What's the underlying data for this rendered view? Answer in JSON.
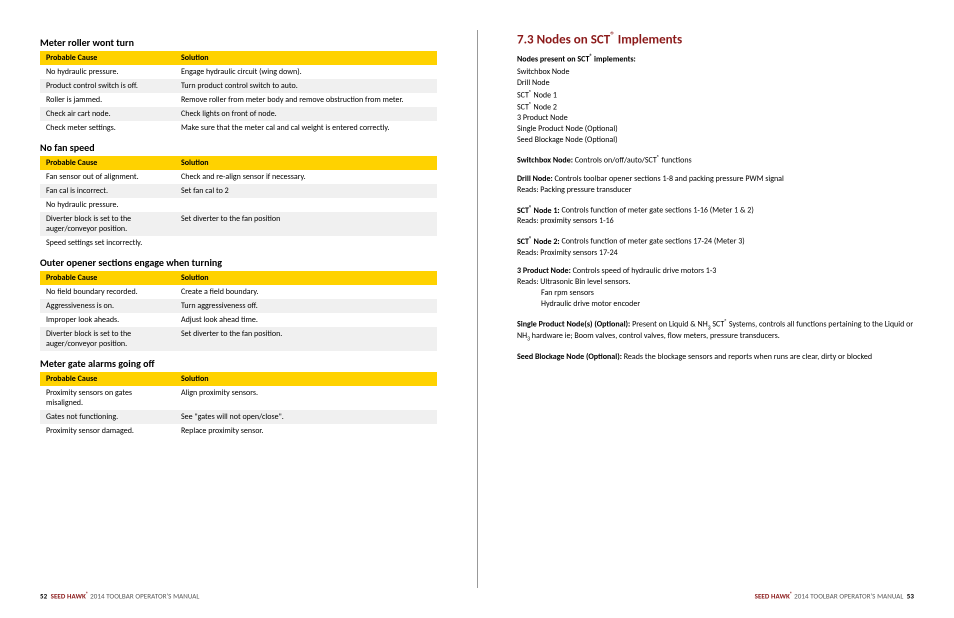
{
  "left": {
    "sections": [
      {
        "title": "Meter roller wont turn",
        "col1": "Probable Cause",
        "col2": "Solution",
        "rows": [
          {
            "c": "No hydraulic pressure.",
            "s": "Engage hydraulic circuit (wing down)."
          },
          {
            "c": "Product control switch is off.",
            "s": "Turn product control switch to auto."
          },
          {
            "c": "Roller is jammed.",
            "s": "Remove roller from meter body and remove obstruction from meter."
          },
          {
            "c": "Check air cart node.",
            "s": "Check lights on front of node."
          },
          {
            "c": "Check meter settings.",
            "s": "Make sure that the meter cal and cal weight is entered correctly."
          }
        ]
      },
      {
        "title": "No fan speed",
        "col1": "Probable Cause",
        "col2": "Solution",
        "rows": [
          {
            "c": "Fan sensor out of alignment.",
            "s": "Check and re-align sensor if necessary."
          },
          {
            "c": "Fan cal is incorrect.",
            "s": "Set fan cal to 2"
          },
          {
            "c": "No hydraulic pressure.",
            "s": ""
          },
          {
            "c": "Diverter block is set to the auger/conveyor position.",
            "s": "Set diverter to the fan position"
          },
          {
            "c": "Speed settings set incorrectly.",
            "s": ""
          }
        ]
      },
      {
        "title": "Outer opener sections engage when turning",
        "col1": "Probable Cause",
        "col2": "Solution",
        "rows": [
          {
            "c": "No field boundary recorded.",
            "s": "Create a field boundary."
          },
          {
            "c": "Aggressiveness is on.",
            "s": "Turn aggressiveness off."
          },
          {
            "c": "Improper look aheads.",
            "s": "Adjust look ahead time."
          },
          {
            "c": "Diverter block is set to the auger/conveyor position.",
            "s": "Set diverter to the fan position."
          }
        ]
      },
      {
        "title": "Meter gate alarms going off",
        "col1": "Probable Cause",
        "col2": "Solution",
        "rows": [
          {
            "c": "Proximity sensors on gates misaligned.",
            "s": "Align proximity sensors."
          },
          {
            "c": "Gates not functioning.",
            "s": "See \"gates will not open/close\"."
          },
          {
            "c": "Proximity sensor damaged.",
            "s": "Replace proximity sensor."
          }
        ]
      }
    ],
    "footer": {
      "pno": "52",
      "brand": "SEED HAWK",
      "rest": " 2014 TOOLBAR OPERATOR'S MANUAL"
    }
  },
  "right": {
    "title": "7.3 Nodes on SCT® Implements",
    "intro": "Nodes present on SCT® implements:",
    "list": [
      "Switchbox Node",
      "Drill Node",
      "SCT® Node 1",
      "SCT® Node 2",
      "3 Product Node",
      "Single Product Node (Optional)",
      "Seed Blockage Node (Optional)"
    ],
    "entries": [
      {
        "b": "Switchbox Node:",
        "t": " Controls on/off/auto/SCT® functions"
      },
      {
        "b": "Drill Node:",
        "t": " Controls toolbar opener sections 1-8 and packing pressure PWM signal",
        "r": [
          "Reads: Packing pressure transducer"
        ]
      },
      {
        "b": "SCT® Node 1:",
        "t": " Controls function of meter gate sections 1-16 (Meter 1 & 2)",
        "r": [
          "Reads: proximity sensors 1-16"
        ]
      },
      {
        "b": "SCT® Node 2:",
        "t": " Controls function of meter gate sections 17-24 (Meter 3)",
        "r": [
          "Reads: Proximity sensors 17-24"
        ]
      },
      {
        "b": "3 Product Node:",
        "t": " Controls speed of hydraulic drive motors 1-3",
        "r": [
          "Reads: Ultrasonic Bin level sensors."
        ],
        "sub": [
          "Fan rpm sensors",
          "Hydraulic drive motor encoder"
        ]
      },
      {
        "b": "Single Product Node(s) (Optional):",
        "t": " Present on Liquid & NH3 SCT® Systems, controls all functions pertaining to the Liquid or NH3 hardware ie; Boom valves, control valves, flow meters, pressure transducers."
      },
      {
        "b": "Seed Blockage Node (Optional):",
        "t": " Reads the blockage sensors and reports when runs are clear, dirty or blocked"
      }
    ],
    "footer": {
      "pno": "53",
      "brand": "SEED HAWK",
      "rest": " 2014 TOOLBAR OPERATOR'S MANUAL"
    }
  }
}
